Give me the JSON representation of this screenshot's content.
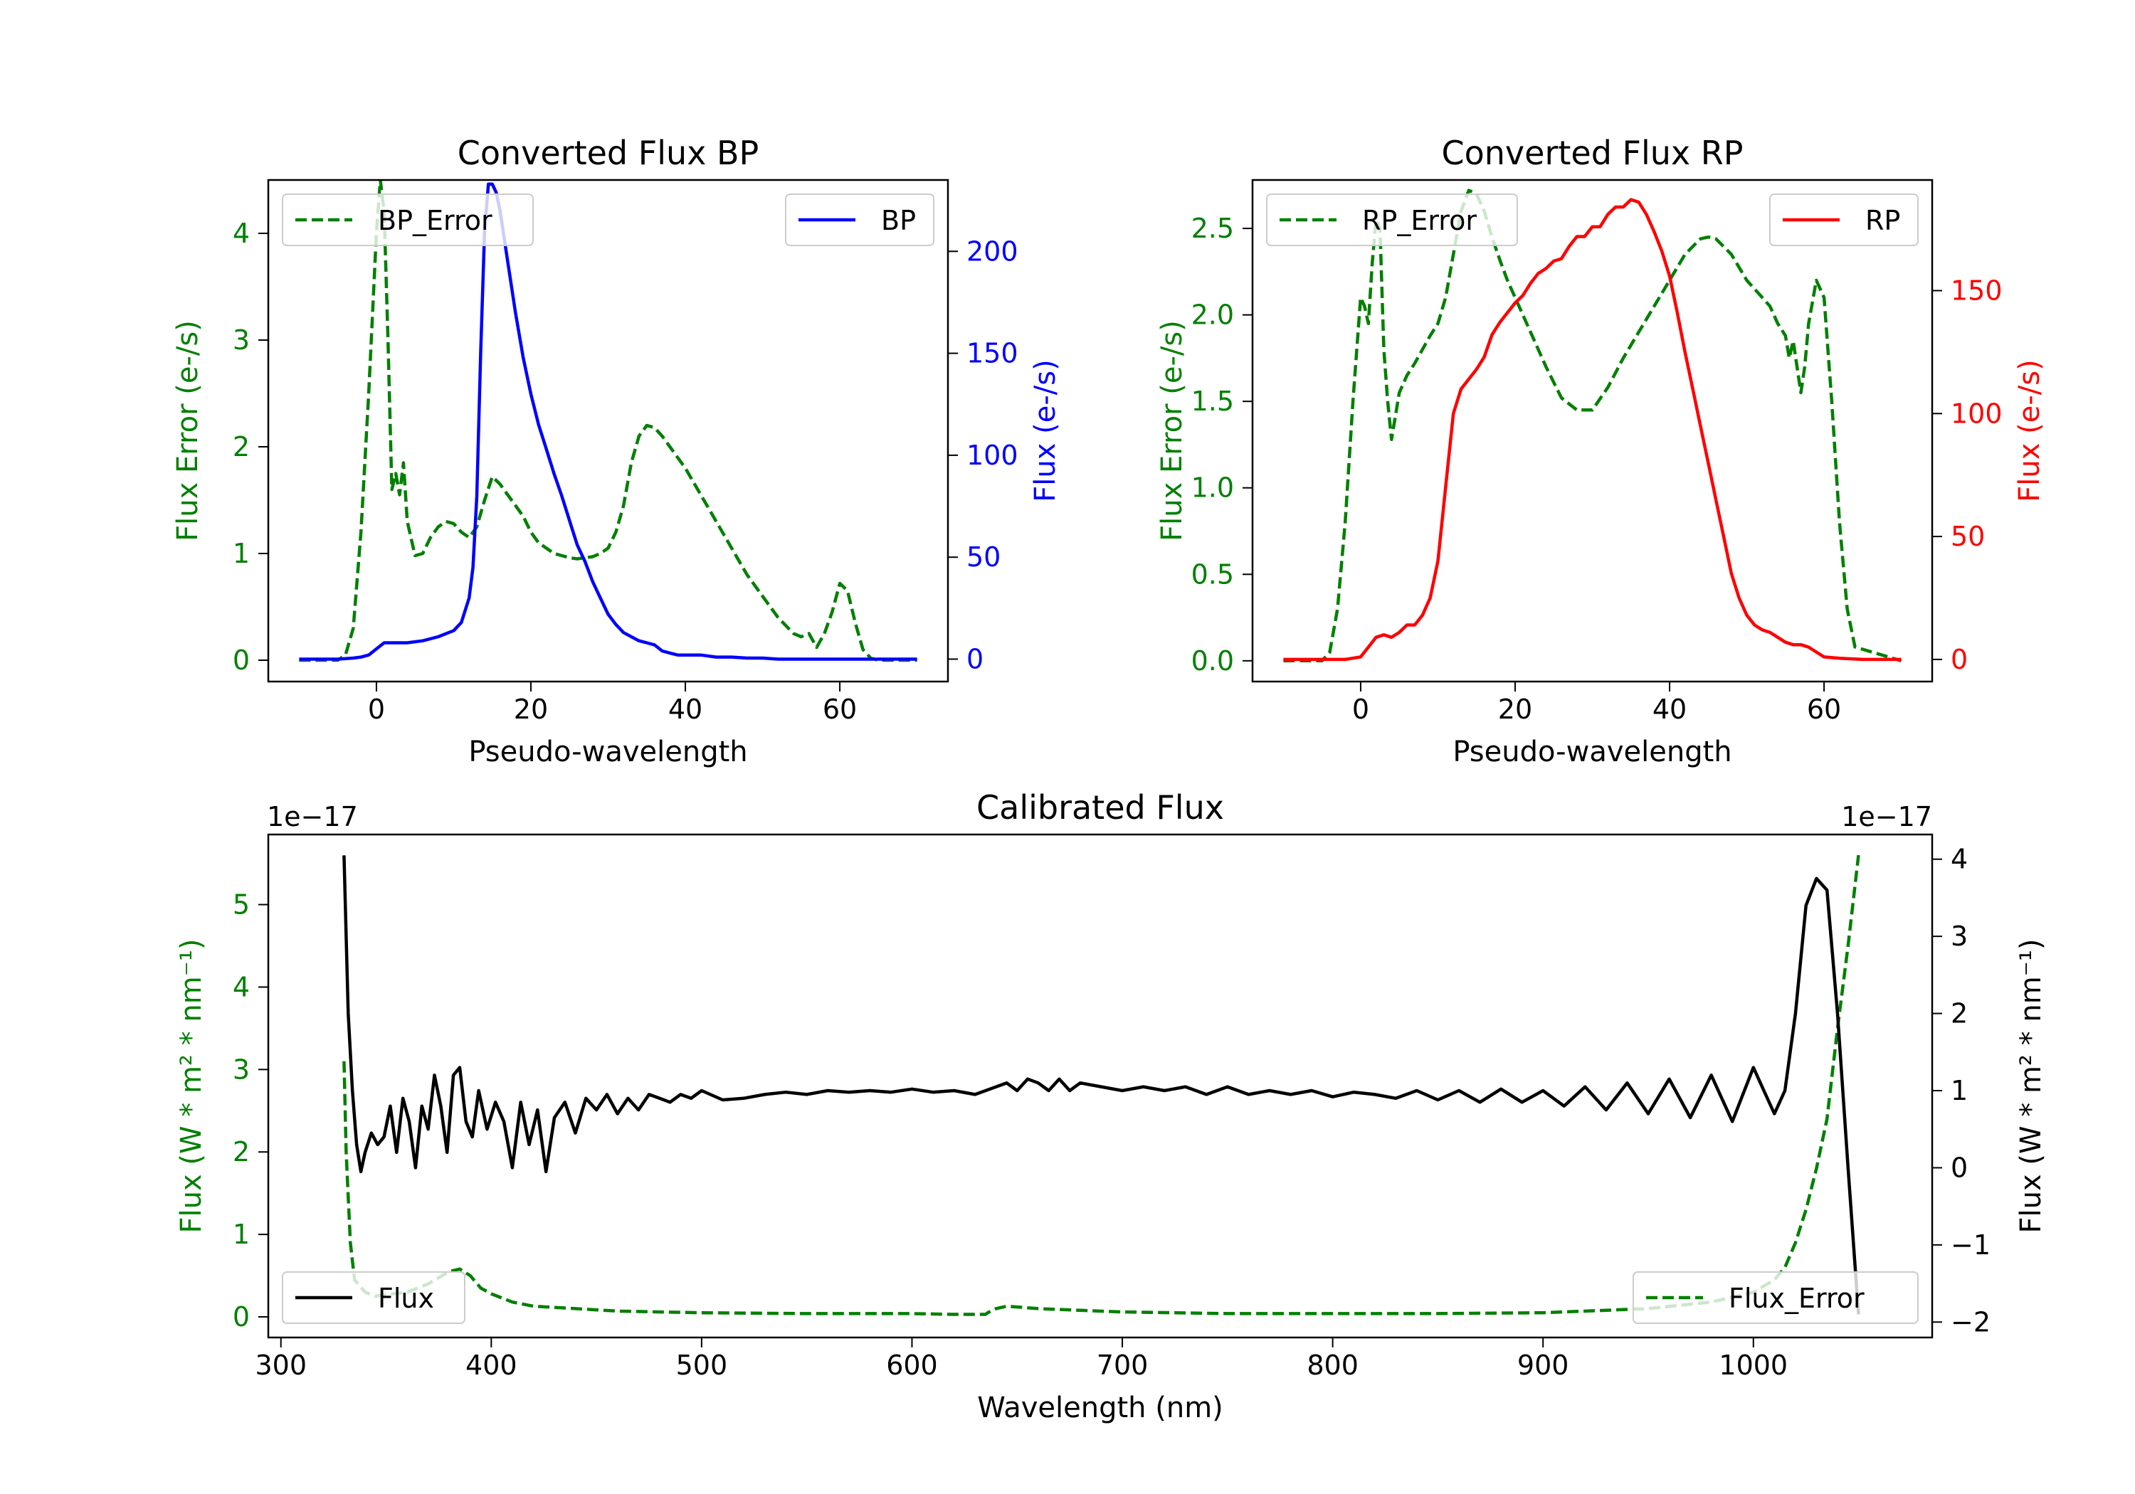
{
  "colors": {
    "bp": "#0000ff",
    "rp": "#ff0000",
    "error": "#008000",
    "flux": "#000000",
    "axis": "#000000"
  },
  "chart_data": [
    {
      "id": "bp",
      "type": "line",
      "title": "Converted Flux BP",
      "xlabel": "Pseudo-wavelength",
      "ylabel_left": "Flux Error (e-/s)",
      "ylabel_right": "Flux (e-/s)",
      "xlim": [
        -14,
        74
      ],
      "ylim_left": [
        -0.2,
        4.5
      ],
      "ylim_right": [
        -11,
        235
      ],
      "xticks": [
        0,
        20,
        40,
        60
      ],
      "yticks_left": [
        0,
        1,
        2,
        3,
        4
      ],
      "yticks_right": [
        0,
        50,
        100,
        150,
        200
      ],
      "legend_left": {
        "label": "BP_Error",
        "position": "upper-left"
      },
      "legend_right": {
        "label": "BP",
        "position": "upper-right"
      },
      "series": [
        {
          "name": "BP_Error",
          "axis": "left",
          "style": "dashed",
          "colorKey": "error",
          "x": [
            -10,
            -5,
            -4,
            -3,
            -2,
            -1,
            0,
            0.5,
            1,
            1.5,
            2,
            2.5,
            3,
            3.5,
            4,
            5,
            6,
            7,
            8,
            9,
            10,
            11,
            12,
            13,
            14,
            15,
            16,
            17,
            18,
            19,
            20,
            21,
            22,
            23,
            24,
            25,
            26,
            27,
            28,
            29,
            30,
            31,
            32,
            33,
            34,
            35,
            36,
            37,
            38,
            40,
            42,
            44,
            46,
            48,
            50,
            52,
            54,
            55,
            56,
            57,
            58,
            59,
            60,
            61,
            62,
            63,
            64,
            65,
            70
          ],
          "y": [
            0,
            0,
            0.05,
            0.3,
            1.2,
            2.5,
            4.0,
            4.5,
            4.2,
            3.0,
            1.6,
            1.75,
            1.55,
            1.85,
            1.3,
            0.98,
            1.0,
            1.15,
            1.25,
            1.3,
            1.28,
            1.2,
            1.15,
            1.25,
            1.5,
            1.72,
            1.65,
            1.55,
            1.45,
            1.35,
            1.2,
            1.1,
            1.05,
            1.0,
            0.98,
            0.96,
            0.95,
            0.96,
            0.97,
            1.0,
            1.05,
            1.2,
            1.45,
            1.85,
            2.1,
            2.2,
            2.18,
            2.1,
            2.0,
            1.8,
            1.55,
            1.3,
            1.05,
            0.8,
            0.6,
            0.4,
            0.25,
            0.22,
            0.25,
            0.12,
            0.25,
            0.45,
            0.72,
            0.65,
            0.35,
            0.1,
            0.02,
            0,
            0
          ]
        },
        {
          "name": "BP",
          "axis": "right",
          "style": "solid",
          "colorKey": "bp",
          "x": [
            -10,
            -5,
            -3,
            -2,
            -1,
            0,
            1,
            2,
            4,
            6,
            8,
            10,
            11,
            12,
            12.5,
            13,
            13.5,
            14,
            14.5,
            15,
            15.5,
            16,
            17,
            18,
            19,
            20,
            21,
            22,
            23,
            24,
            25,
            26,
            27,
            28,
            29,
            30,
            31,
            32,
            33,
            34,
            35,
            36,
            37,
            38,
            39,
            40,
            42,
            44,
            46,
            48,
            50,
            52,
            55,
            58,
            60,
            62,
            65,
            70
          ],
          "y": [
            0,
            0,
            0.5,
            1,
            2,
            5,
            8,
            8,
            8,
            9,
            11,
            14,
            18,
            30,
            45,
            80,
            150,
            210,
            233,
            233,
            229,
            220,
            195,
            170,
            148,
            130,
            115,
            103,
            91,
            80,
            68,
            56,
            48,
            38,
            30,
            22,
            17,
            13,
            11,
            9,
            8,
            7,
            4,
            3,
            2,
            2,
            2,
            1,
            1,
            0.5,
            0.5,
            0,
            0,
            0,
            0,
            0,
            0,
            0
          ]
        }
      ]
    },
    {
      "id": "rp",
      "type": "line",
      "title": "Converted Flux RP",
      "xlabel": "Pseudo-wavelength",
      "ylabel_left": "Flux Error (e-/s)",
      "ylabel_right": "Flux (e-/s)",
      "xlim": [
        -14,
        74
      ],
      "ylim_left": [
        -0.12,
        2.78
      ],
      "ylim_right": [
        -9,
        195
      ],
      "xticks": [
        0,
        20,
        40,
        60
      ],
      "yticks_left": [
        0.0,
        0.5,
        1.0,
        1.5,
        2.0,
        2.5
      ],
      "yticks_right": [
        0,
        50,
        100,
        150
      ],
      "legend_left": {
        "label": "RP_Error",
        "position": "upper-left"
      },
      "legend_right": {
        "label": "RP",
        "position": "upper-right"
      },
      "series": [
        {
          "name": "RP_Error",
          "axis": "left",
          "style": "dashed",
          "colorKey": "error",
          "x": [
            -10,
            -5,
            -4,
            -3,
            -2,
            -1,
            0,
            0.5,
            1,
            1.5,
            2,
            2.5,
            3,
            3.5,
            4,
            5,
            6,
            7,
            8,
            9,
            10,
            11,
            12,
            13,
            14,
            15,
            16,
            17,
            18,
            19,
            20,
            22,
            24,
            26,
            28,
            30,
            32,
            34,
            36,
            38,
            40,
            42,
            44,
            45,
            46,
            48,
            50,
            52,
            53,
            54,
            55,
            55.5,
            56,
            56.5,
            57,
            57.5,
            58,
            59,
            60,
            61,
            62,
            63,
            64,
            70
          ],
          "y": [
            0,
            0,
            0.05,
            0.3,
            0.8,
            1.5,
            2.1,
            2.05,
            1.95,
            2.3,
            2.55,
            2.5,
            1.8,
            1.5,
            1.28,
            1.55,
            1.65,
            1.72,
            1.8,
            1.88,
            1.95,
            2.1,
            2.35,
            2.6,
            2.72,
            2.7,
            2.6,
            2.45,
            2.32,
            2.2,
            2.1,
            1.9,
            1.7,
            1.52,
            1.45,
            1.45,
            1.58,
            1.75,
            1.9,
            2.05,
            2.2,
            2.35,
            2.44,
            2.45,
            2.44,
            2.35,
            2.2,
            2.1,
            2.05,
            1.95,
            1.88,
            1.75,
            1.85,
            1.7,
            1.55,
            1.7,
            1.95,
            2.2,
            2.1,
            1.5,
            0.8,
            0.3,
            0.08,
            0
          ]
        },
        {
          "name": "RP",
          "axis": "right",
          "style": "solid",
          "colorKey": "rp",
          "x": [
            -10,
            -5,
            -2,
            -1,
            0,
            1,
            2,
            3,
            4,
            5,
            6,
            7,
            8,
            9,
            10,
            11,
            12,
            13,
            14,
            15,
            16,
            17,
            18,
            19,
            20,
            21,
            22,
            23,
            24,
            25,
            26,
            27,
            28,
            29,
            30,
            31,
            32,
            33,
            34,
            35,
            36,
            37,
            38,
            39,
            40,
            41,
            42,
            43,
            44,
            45,
            46,
            47,
            48,
            49,
            50,
            51,
            52,
            53,
            54,
            55,
            56,
            57,
            58,
            59,
            60,
            62,
            65,
            70
          ],
          "y": [
            0,
            0,
            0,
            0.5,
            1,
            5,
            9,
            10,
            9,
            11,
            14,
            14,
            18,
            25,
            40,
            70,
            100,
            110,
            114,
            118,
            123,
            132,
            137,
            141,
            145,
            148,
            153,
            157,
            159,
            162,
            163,
            168,
            172,
            172,
            176,
            176,
            181,
            184,
            184,
            187,
            186,
            181,
            174,
            166,
            156,
            141,
            125,
            110,
            95,
            80,
            65,
            50,
            35,
            25,
            18,
            14,
            12,
            11,
            9,
            7,
            6,
            6,
            5,
            3,
            1,
            0.5,
            0,
            0
          ]
        }
      ]
    },
    {
      "id": "cal",
      "type": "line",
      "title": "Calibrated Flux",
      "xlabel": "Wavelength (nm)",
      "ylabel_left": "Flux (W * m² * nm⁻¹)",
      "ylabel_right": "Flux (W * m² * nm⁻¹)",
      "offset_left": "1e−17",
      "offset_right": "1e−17",
      "xlim": [
        294,
        1085
      ],
      "ylim_left": [
        -0.25,
        5.85
      ],
      "ylim_right": [
        -2.2,
        4.32
      ],
      "xticks": [
        300,
        400,
        500,
        600,
        700,
        800,
        900,
        1000
      ],
      "yticks_left": [
        0,
        1,
        2,
        3,
        4,
        5
      ],
      "yticks_right": [
        -2,
        -1,
        0,
        1,
        2,
        3,
        4
      ],
      "legend_left": {
        "label": "Flux",
        "position": "lower-left"
      },
      "legend_right": {
        "label": "Flux_Error",
        "position": "lower-right"
      },
      "series": [
        {
          "name": "Flux_Error",
          "axis": "left",
          "style": "dashed",
          "colorKey": "error",
          "x": [
            330,
            331,
            333,
            335,
            340,
            345,
            350,
            360,
            370,
            380,
            385,
            390,
            395,
            400,
            410,
            420,
            440,
            460,
            480,
            500,
            550,
            600,
            620,
            635,
            636,
            640,
            645,
            660,
            680,
            700,
            750,
            800,
            850,
            900,
            950,
            980,
            1000,
            1010,
            1015,
            1020,
            1025,
            1030,
            1035,
            1040,
            1045,
            1050
          ],
          "y": [
            3.1,
            2.0,
            0.9,
            0.45,
            0.3,
            0.25,
            0.27,
            0.3,
            0.4,
            0.55,
            0.58,
            0.5,
            0.35,
            0.28,
            0.18,
            0.13,
            0.1,
            0.07,
            0.06,
            0.05,
            0.04,
            0.04,
            0.03,
            0.03,
            0.05,
            0.1,
            0.13,
            0.1,
            0.08,
            0.06,
            0.04,
            0.04,
            0.04,
            0.05,
            0.1,
            0.18,
            0.3,
            0.45,
            0.6,
            0.9,
            1.3,
            1.8,
            2.4,
            3.5,
            4.5,
            5.6
          ]
        },
        {
          "name": "Flux",
          "axis": "right",
          "style": "solid",
          "colorKey": "flux",
          "x": [
            330,
            331,
            332,
            334,
            336,
            338,
            340,
            343,
            346,
            349,
            352,
            355,
            358,
            361,
            364,
            367,
            370,
            373,
            376,
            379,
            382,
            385,
            388,
            391,
            394,
            398,
            402,
            406,
            410,
            414,
            418,
            422,
            426,
            430,
            435,
            440,
            445,
            450,
            455,
            460,
            465,
            470,
            475,
            480,
            485,
            490,
            495,
            500,
            510,
            520,
            530,
            540,
            550,
            560,
            570,
            580,
            590,
            600,
            610,
            620,
            630,
            640,
            645,
            650,
            655,
            660,
            665,
            670,
            675,
            680,
            690,
            700,
            710,
            720,
            730,
            740,
            750,
            760,
            770,
            780,
            790,
            800,
            810,
            820,
            830,
            840,
            850,
            860,
            870,
            880,
            890,
            900,
            910,
            920,
            930,
            940,
            950,
            960,
            970,
            980,
            990,
            1000,
            1005,
            1010,
            1015,
            1020,
            1025,
            1030,
            1035,
            1040,
            1045,
            1050
          ],
          "y": [
            4.05,
            3.0,
            2.0,
            1.0,
            0.3,
            -0.05,
            0.2,
            0.45,
            0.3,
            0.4,
            0.8,
            0.2,
            0.9,
            0.6,
            0.0,
            0.8,
            0.5,
            1.2,
            0.8,
            0.2,
            1.2,
            1.3,
            0.6,
            0.4,
            1.0,
            0.5,
            0.85,
            0.6,
            0.0,
            0.85,
            0.3,
            0.75,
            -0.05,
            0.65,
            0.85,
            0.45,
            0.9,
            0.75,
            0.95,
            0.7,
            0.9,
            0.75,
            0.95,
            0.9,
            0.85,
            0.95,
            0.9,
            1.0,
            0.88,
            0.9,
            0.95,
            0.98,
            0.95,
            1.0,
            0.98,
            1.0,
            0.98,
            1.02,
            0.98,
            1.0,
            0.95,
            1.05,
            1.1,
            1.0,
            1.15,
            1.1,
            1.0,
            1.15,
            1.0,
            1.1,
            1.05,
            1.0,
            1.05,
            1.0,
            1.05,
            0.95,
            1.05,
            0.95,
            1.0,
            0.95,
            1.0,
            0.92,
            0.98,
            0.95,
            0.9,
            1.0,
            0.88,
            1.0,
            0.85,
            1.02,
            0.85,
            1.0,
            0.8,
            1.05,
            0.75,
            1.1,
            0.7,
            1.15,
            0.65,
            1.2,
            0.6,
            1.3,
            1.0,
            0.7,
            1.0,
            2.0,
            3.4,
            3.75,
            3.6,
            2.0,
            0.0,
            -1.9
          ]
        }
      ]
    }
  ]
}
